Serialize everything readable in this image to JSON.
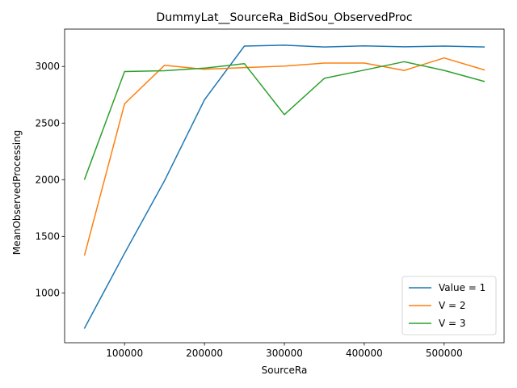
{
  "chart_data": {
    "type": "line",
    "title": "DummyLat__SourceRa_BidSou_ObservedProc",
    "xlabel": "SourceRa",
    "ylabel": "MeanObservedProcessing",
    "xlim": [
      25000,
      575000
    ],
    "ylim": [
      560,
      3330
    ],
    "x_ticks": [
      100000,
      200000,
      300000,
      400000,
      500000
    ],
    "y_ticks": [
      1000,
      1500,
      2000,
      2500,
      3000
    ],
    "grid": false,
    "legend_position": "lower right",
    "x": [
      50000,
      100000,
      150000,
      200000,
      250000,
      300000,
      350000,
      400000,
      450000,
      500000,
      550000
    ],
    "series": [
      {
        "name": "Value = 1",
        "color": "#1f77b4",
        "values": [
          690,
          1350,
          1990,
          2705,
          3180,
          3188,
          3172,
          3182,
          3174,
          3180,
          3172
        ]
      },
      {
        "name": "V = 2",
        "color": "#ff7f0e",
        "values": [
          1335,
          2670,
          3010,
          2975,
          2990,
          3003,
          3030,
          3030,
          2965,
          3075,
          2970
        ]
      },
      {
        "name": "V = 3",
        "color": "#2ca02c",
        "values": [
          2005,
          2955,
          2962,
          2985,
          3025,
          2575,
          2895,
          2968,
          3042,
          2965,
          2868
        ]
      }
    ]
  }
}
